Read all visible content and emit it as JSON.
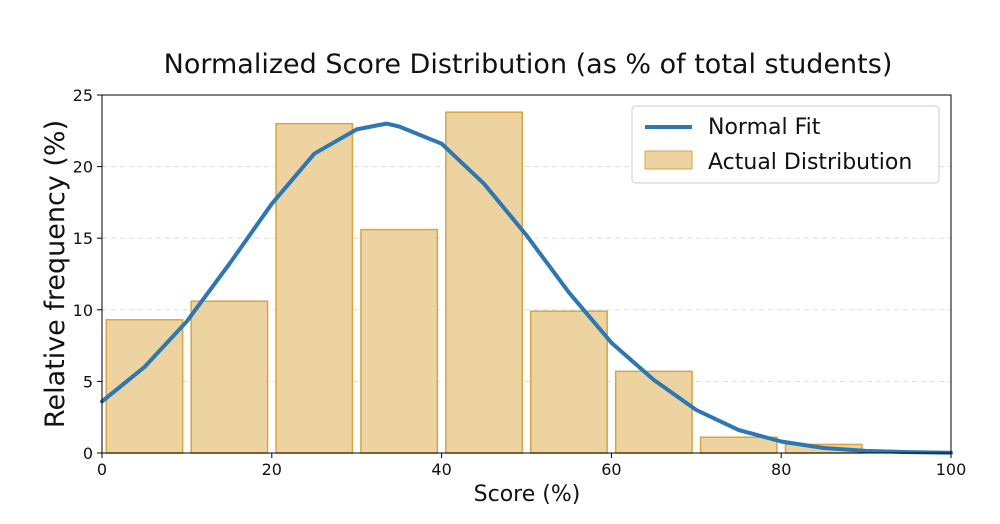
{
  "chart_data": {
    "type": "bar",
    "title": "Normalized Score Distribution (as % of total students)",
    "xlabel": "Score (%)",
    "ylabel": "Relative frequency (%)",
    "xlim": [
      0,
      100
    ],
    "ylim": [
      0,
      25
    ],
    "xticks": [
      0,
      20,
      40,
      60,
      80,
      100
    ],
    "yticks": [
      0,
      5,
      10,
      15,
      20,
      25
    ],
    "grid": "horizontal dashed",
    "legend_position": "upper right",
    "colors": {
      "bar_fill": "#edd39f",
      "bar_edge": "#d9a441",
      "line": "#2b78b4",
      "grid": "#dddddd"
    },
    "series": [
      {
        "name": "Actual Distribution",
        "type": "histogram",
        "bins": [
          {
            "start": 0,
            "end": 10,
            "value": 9.3
          },
          {
            "start": 10,
            "end": 20,
            "value": 10.6
          },
          {
            "start": 20,
            "end": 30,
            "value": 23.0
          },
          {
            "start": 30,
            "end": 40,
            "value": 15.6
          },
          {
            "start": 40,
            "end": 50,
            "value": 23.8
          },
          {
            "start": 50,
            "end": 60,
            "value": 9.9
          },
          {
            "start": 60,
            "end": 70,
            "value": 5.7
          },
          {
            "start": 70,
            "end": 80,
            "value": 1.1
          },
          {
            "start": 80,
            "end": 90,
            "value": 0.6
          }
        ]
      },
      {
        "name": "Normal Fit",
        "type": "line",
        "x": [
          0,
          5,
          10,
          15,
          20,
          25,
          30,
          33.5,
          35,
          40,
          45,
          50,
          55,
          60,
          65,
          70,
          75,
          80,
          85,
          90,
          95,
          100
        ],
        "y": [
          3.6,
          6.0,
          9.2,
          13.2,
          17.4,
          20.9,
          22.6,
          23.0,
          22.8,
          21.6,
          18.8,
          15.2,
          11.2,
          7.7,
          5.1,
          3.0,
          1.6,
          0.8,
          0.35,
          0.15,
          0.06,
          0.02
        ]
      }
    ]
  }
}
